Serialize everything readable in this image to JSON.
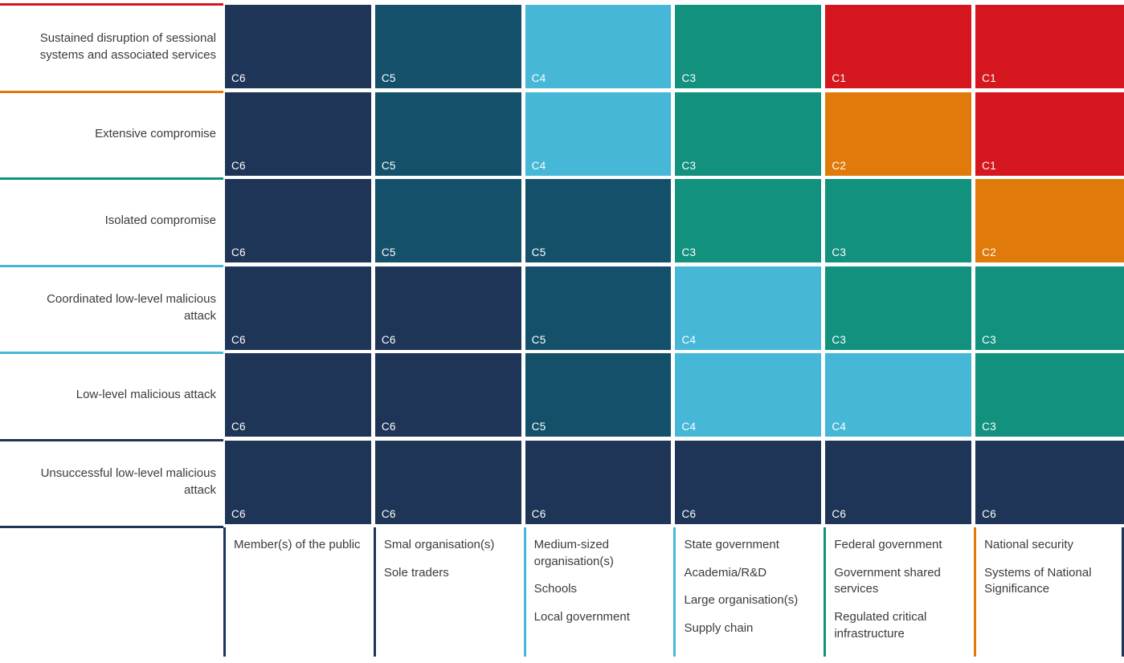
{
  "page": {
    "background": "#ffffff",
    "text_color": "#3b3b3b",
    "cell_label_color": "#ffffff"
  },
  "chart_data": {
    "type": "heatmap",
    "row_labels": [
      "Sustained disruption of sessional systems and associated services",
      "Extensive compromise",
      "Isolated compromise",
      "Coordinated low-level malicious attack",
      "Low-level malicious attack",
      "Unsuccessful low-level malicious attack"
    ],
    "column_labels": [
      [
        "Member(s) of the public"
      ],
      [
        "Smal organisation(s)",
        "Sole traders"
      ],
      [
        "Medium-sized organisation(s)",
        "Schools",
        "Local government"
      ],
      [
        "State government",
        "Academia/R&D",
        "Large organisation(s)",
        "Supply chain"
      ],
      [
        "Federal government",
        "Government shared services",
        "Regulated critical infrastructure"
      ],
      [
        "National security",
        "Systems of National Significance"
      ]
    ],
    "cells": [
      [
        "C6",
        "C5",
        "C4",
        "C3",
        "C1",
        "C1"
      ],
      [
        "C6",
        "C5",
        "C4",
        "C3",
        "C2",
        "C1"
      ],
      [
        "C6",
        "C5",
        "C5",
        "C3",
        "C3",
        "C2"
      ],
      [
        "C6",
        "C6",
        "C5",
        "C4",
        "C3",
        "C3"
      ],
      [
        "C6",
        "C6",
        "C5",
        "C4",
        "C4",
        "C3"
      ],
      [
        "C6",
        "C6",
        "C6",
        "C6",
        "C6",
        "C6"
      ]
    ],
    "category_colors": {
      "C1": "#d5161f",
      "C2": "#e07a0a",
      "C3": "#12917e",
      "C4": "#46b7d7",
      "C5": "#15506b",
      "C6": "#1e3557"
    },
    "row_separator_colors": [
      "#d5161f",
      "#e07a0a",
      "#12917e",
      "#46b7d7",
      "#46b7d7",
      "#1e3557",
      "#1e3557"
    ],
    "column_separator_colors": [
      "#1e3557",
      "#1e3557",
      "#46b7d7",
      "#46b7d7",
      "#12917e",
      "#e07a0a"
    ],
    "right_edge_line_color": "#1e3557",
    "legend_position": "none",
    "cell_value_position": "bottom-left",
    "grid_gap_color": "#ffffff"
  }
}
